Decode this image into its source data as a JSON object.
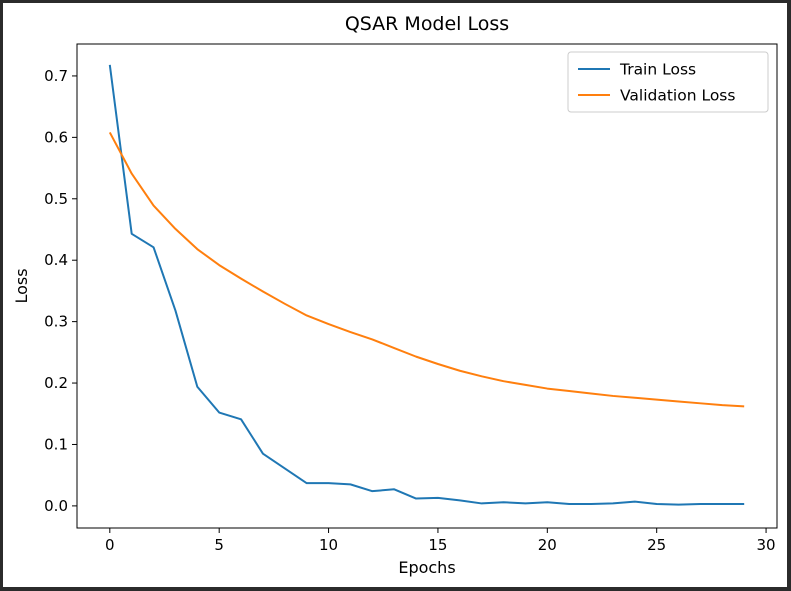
{
  "chart_data": {
    "type": "line",
    "title": "QSAR Model Loss",
    "xlabel": "Epochs",
    "ylabel": "Loss",
    "xlim": [
      -1.5,
      30.5
    ],
    "ylim": [
      -0.036,
      0.752
    ],
    "xticks": [
      0,
      5,
      10,
      15,
      20,
      25,
      30
    ],
    "yticks": [
      0.0,
      0.1,
      0.2,
      0.3,
      0.4,
      0.5,
      0.6,
      0.7
    ],
    "ytick_labels": [
      "0.0",
      "0.1",
      "0.2",
      "0.3",
      "0.4",
      "0.5",
      "0.6",
      "0.7"
    ],
    "grid": false,
    "legend": "top-right",
    "x": [
      0,
      1,
      2,
      3,
      4,
      5,
      6,
      7,
      8,
      9,
      10,
      11,
      12,
      13,
      14,
      15,
      16,
      17,
      18,
      19,
      20,
      21,
      22,
      23,
      24,
      25,
      26,
      27,
      28,
      29
    ],
    "series": [
      {
        "name": "Train Loss",
        "color": "#1f77b4",
        "values": [
          0.718,
          0.443,
          0.421,
          0.318,
          0.194,
          0.152,
          0.141,
          0.085,
          0.061,
          0.037,
          0.037,
          0.035,
          0.024,
          0.027,
          0.012,
          0.013,
          0.009,
          0.004,
          0.006,
          0.004,
          0.006,
          0.003,
          0.003,
          0.004,
          0.007,
          0.003,
          0.002,
          0.003,
          0.003,
          0.003
        ]
      },
      {
        "name": "Validation Loss",
        "color": "#ff7f0e",
        "values": [
          0.608,
          0.541,
          0.489,
          0.451,
          0.418,
          0.392,
          0.37,
          0.349,
          0.329,
          0.31,
          0.296,
          0.283,
          0.271,
          0.257,
          0.243,
          0.231,
          0.22,
          0.211,
          0.203,
          0.197,
          0.191,
          0.187,
          0.183,
          0.179,
          0.176,
          0.173,
          0.17,
          0.167,
          0.164,
          0.162
        ]
      }
    ]
  }
}
